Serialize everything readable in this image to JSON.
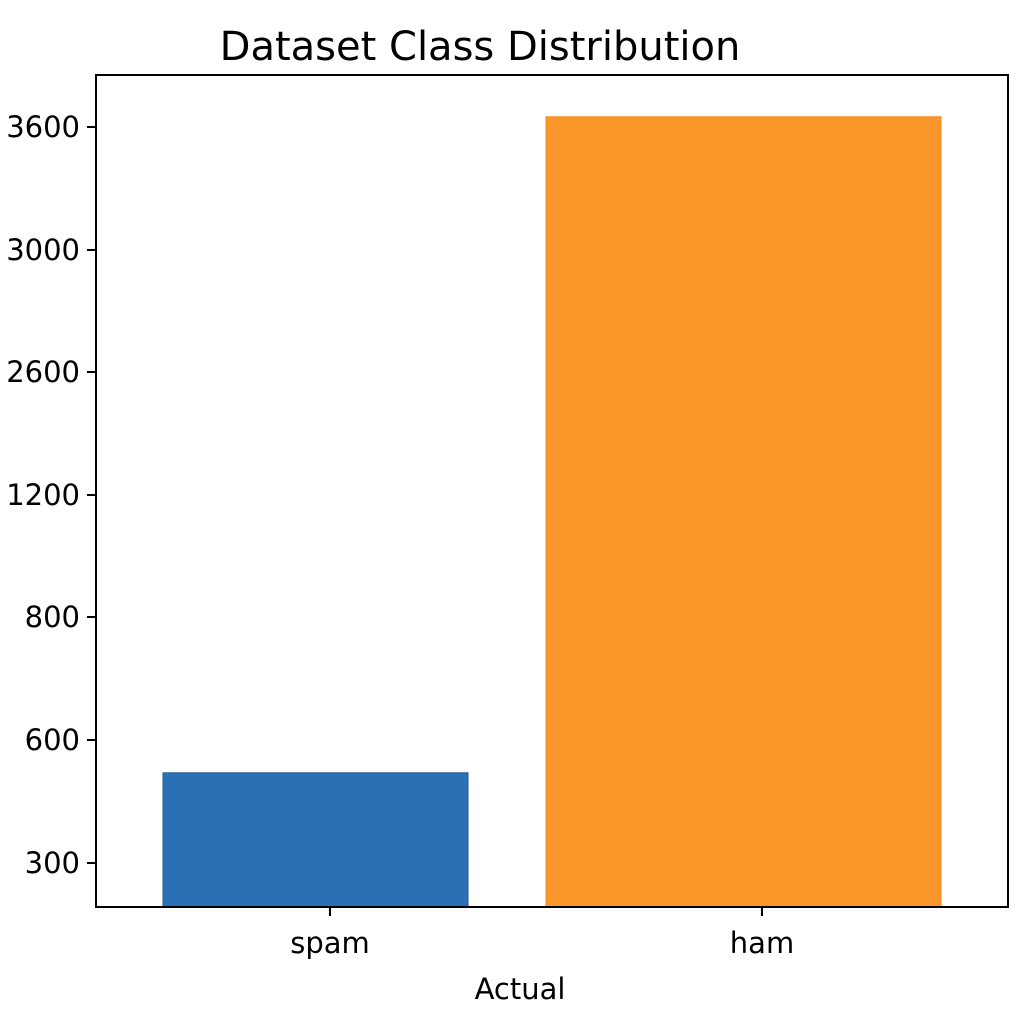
{
  "chart_data": {
    "type": "bar",
    "title": "Dataset Class Distribution",
    "xlabel": "Actual",
    "ylabel": "",
    "categories": [
      "spam",
      "ham"
    ],
    "values": [
      520,
      3650
    ],
    "y_ticks": [
      {
        "label": "300",
        "value": 300
      },
      {
        "label": "600",
        "value": 600
      },
      {
        "label": "800",
        "value": 800
      },
      {
        "label": "1200",
        "value": 1200
      },
      {
        "label": "2600",
        "value": 2600
      },
      {
        "label": "3000",
        "value": 3000
      },
      {
        "label": "3600",
        "value": 3600
      }
    ],
    "bar_colors": [
      "#2a70b5",
      "#fb962a"
    ],
    "grid": false,
    "legend": "none"
  }
}
